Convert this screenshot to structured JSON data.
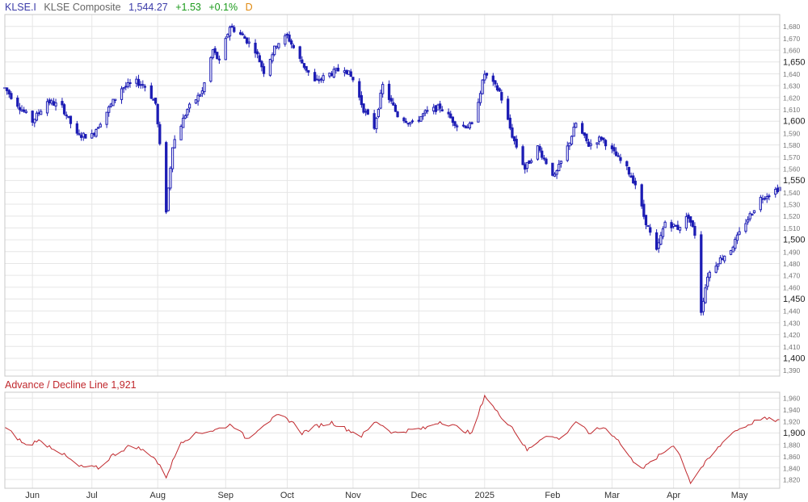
{
  "header": {
    "symbol": "KLSE.I",
    "name": "KLSE Composite",
    "price": "1,544.27",
    "change": "+1.53",
    "pct": "+0.1%",
    "period": "D"
  },
  "indicator": {
    "title": "Advance / Decline Line",
    "value": "1,921"
  },
  "colors": {
    "candle": "#1c1cb4",
    "ad_line": "#c0282d",
    "grid": "#e6e6e6",
    "frame": "#c8c8c8"
  },
  "chart_data": [
    {
      "type": "candlestick",
      "title": "KLSE Composite",
      "ylim": [
        1385,
        1690
      ],
      "y_ticks": [
        "1,390",
        "1,400",
        "1,410",
        "1,420",
        "1,430",
        "1,440",
        "1,450",
        "1,460",
        "1,470",
        "1,480",
        "1,490",
        "1,500",
        "1,510",
        "1,520",
        "1,530",
        "1,540",
        "1,550",
        "1,560",
        "1,570",
        "1,580",
        "1,590",
        "1,600",
        "1,610",
        "1,620",
        "1,630",
        "1,640",
        "1,650",
        "1,660",
        "1,670",
        "1,680"
      ],
      "y_major": [
        "1,400",
        "1,450",
        "1,500",
        "1,550",
        "1,600",
        "1,650"
      ],
      "x_labels": [
        "Jun",
        "Jul",
        "Aug",
        "Sep",
        "Oct",
        "Nov",
        "Dec",
        "2025",
        "Feb",
        "Mar",
        "Apr",
        "May"
      ],
      "x_label_dates": [
        "2024-06-03",
        "2024-07-01",
        "2024-08-01",
        "2024-09-02",
        "2024-10-01",
        "2024-11-01",
        "2024-12-02",
        "2025-01-02",
        "2025-02-03",
        "2025-03-03",
        "2025-04-01",
        "2025-05-02"
      ],
      "x_range": [
        "2024-05-21",
        "2025-05-21"
      ],
      "anchors": [
        [
          "2024-05-21",
          1628
        ],
        [
          "2024-05-28",
          1612
        ],
        [
          "2024-06-03",
          1600
        ],
        [
          "2024-06-10",
          1617
        ],
        [
          "2024-06-17",
          1612
        ],
        [
          "2024-06-24",
          1588
        ],
        [
          "2024-07-01",
          1588
        ],
        [
          "2024-07-08",
          1608
        ],
        [
          "2024-07-15",
          1628
        ],
        [
          "2024-07-22",
          1633
        ],
        [
          "2024-07-26",
          1630
        ],
        [
          "2024-07-31",
          1615
        ],
        [
          "2024-08-05",
          1525
        ],
        [
          "2024-08-08",
          1580
        ],
        [
          "2024-08-15",
          1610
        ],
        [
          "2024-08-22",
          1625
        ],
        [
          "2024-08-27",
          1660
        ],
        [
          "2024-08-30",
          1650
        ],
        [
          "2024-09-04",
          1680
        ],
        [
          "2024-09-10",
          1672
        ],
        [
          "2024-09-16",
          1660
        ],
        [
          "2024-09-20",
          1642
        ],
        [
          "2024-09-26",
          1665
        ],
        [
          "2024-10-01",
          1672
        ],
        [
          "2024-10-07",
          1652
        ],
        [
          "2024-10-14",
          1633
        ],
        [
          "2024-10-21",
          1640
        ],
        [
          "2024-10-28",
          1645
        ],
        [
          "2024-11-01",
          1635
        ],
        [
          "2024-11-06",
          1610
        ],
        [
          "2024-11-11",
          1595
        ],
        [
          "2024-11-15",
          1630
        ],
        [
          "2024-11-22",
          1605
        ],
        [
          "2024-11-29",
          1598
        ],
        [
          "2024-12-05",
          1607
        ],
        [
          "2024-12-12",
          1612
        ],
        [
          "2024-12-20",
          1597
        ],
        [
          "2024-12-27",
          1596
        ],
        [
          "2025-01-02",
          1640
        ],
        [
          "2025-01-09",
          1625
        ],
        [
          "2025-01-15",
          1588
        ],
        [
          "2025-01-21",
          1560
        ],
        [
          "2025-01-27",
          1578
        ],
        [
          "2025-02-04",
          1553
        ],
        [
          "2025-02-10",
          1578
        ],
        [
          "2025-02-14",
          1598
        ],
        [
          "2025-02-20",
          1580
        ],
        [
          "2025-02-26",
          1586
        ],
        [
          "2025-03-04",
          1573
        ],
        [
          "2025-03-10",
          1560
        ],
        [
          "2025-03-14",
          1547
        ],
        [
          "2025-03-18",
          1520
        ],
        [
          "2025-03-24",
          1490
        ],
        [
          "2025-03-28",
          1515
        ],
        [
          "2025-04-03",
          1510
        ],
        [
          "2025-04-08",
          1520
        ],
        [
          "2025-04-11",
          1505
        ],
        [
          "2025-04-14",
          1440
        ],
        [
          "2025-04-17",
          1470
        ],
        [
          "2025-04-22",
          1482
        ],
        [
          "2025-04-28",
          1492
        ],
        [
          "2025-05-05",
          1515
        ],
        [
          "2025-05-12",
          1535
        ],
        [
          "2025-05-21",
          1544
        ]
      ]
    },
    {
      "type": "line",
      "title": "Advance / Decline Line",
      "ylim": [
        1805,
        1970
      ],
      "y_ticks": [
        "1,820",
        "1,840",
        "1,860",
        "1,880",
        "1,900",
        "1,920",
        "1,940",
        "1,960"
      ],
      "y_major": [
        "1,900"
      ],
      "x_range": [
        "2024-05-21",
        "2025-05-21"
      ],
      "anchors": [
        [
          "2024-05-21",
          1910
        ],
        [
          "2024-06-01",
          1875
        ],
        [
          "2024-06-05",
          1888
        ],
        [
          "2024-06-15",
          1870
        ],
        [
          "2024-06-25",
          1842
        ],
        [
          "2024-07-05",
          1840
        ],
        [
          "2024-07-10",
          1860
        ],
        [
          "2024-07-20",
          1880
        ],
        [
          "2024-07-30",
          1860
        ],
        [
          "2024-08-05",
          1825
        ],
        [
          "2024-08-12",
          1885
        ],
        [
          "2024-08-20",
          1900
        ],
        [
          "2024-08-28",
          1905
        ],
        [
          "2024-09-05",
          1915
        ],
        [
          "2024-09-12",
          1890
        ],
        [
          "2024-09-20",
          1915
        ],
        [
          "2024-09-27",
          1930
        ],
        [
          "2024-10-03",
          1920
        ],
        [
          "2024-10-08",
          1900
        ],
        [
          "2024-10-15",
          1912
        ],
        [
          "2024-10-22",
          1918
        ],
        [
          "2024-10-30",
          1905
        ],
        [
          "2024-11-05",
          1895
        ],
        [
          "2024-11-12",
          1920
        ],
        [
          "2024-11-20",
          1900
        ],
        [
          "2024-11-28",
          1905
        ],
        [
          "2024-12-05",
          1908
        ],
        [
          "2024-12-12",
          1920
        ],
        [
          "2024-12-20",
          1910
        ],
        [
          "2024-12-27",
          1898
        ],
        [
          "2025-01-02",
          1965
        ],
        [
          "2025-01-08",
          1935
        ],
        [
          "2025-01-15",
          1910
        ],
        [
          "2025-01-22",
          1870
        ],
        [
          "2025-01-30",
          1895
        ],
        [
          "2025-02-07",
          1890
        ],
        [
          "2025-02-14",
          1920
        ],
        [
          "2025-02-20",
          1900
        ],
        [
          "2025-02-27",
          1910
        ],
        [
          "2025-03-05",
          1892
        ],
        [
          "2025-03-12",
          1855
        ],
        [
          "2025-03-18",
          1840
        ],
        [
          "2025-03-25",
          1860
        ],
        [
          "2025-04-01",
          1880
        ],
        [
          "2025-04-05",
          1855
        ],
        [
          "2025-04-09",
          1815
        ],
        [
          "2025-04-14",
          1840
        ],
        [
          "2025-04-21",
          1870
        ],
        [
          "2025-04-28",
          1900
        ],
        [
          "2025-05-05",
          1912
        ],
        [
          "2025-05-12",
          1925
        ],
        [
          "2025-05-21",
          1921
        ]
      ]
    }
  ]
}
